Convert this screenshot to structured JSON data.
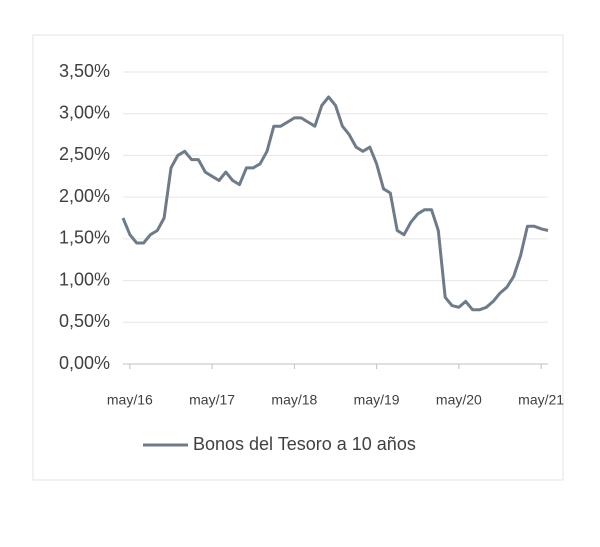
{
  "chart_data": {
    "type": "line",
    "x": [
      "2016-04",
      "2016-05",
      "2016-06",
      "2016-07",
      "2016-08",
      "2016-09",
      "2016-10",
      "2016-11",
      "2016-12",
      "2017-01",
      "2017-02",
      "2017-03",
      "2017-04",
      "2017-05",
      "2017-06",
      "2017-07",
      "2017-08",
      "2017-09",
      "2017-10",
      "2017-11",
      "2017-12",
      "2018-01",
      "2018-02",
      "2018-03",
      "2018-04",
      "2018-05",
      "2018-06",
      "2018-07",
      "2018-08",
      "2018-09",
      "2018-10",
      "2018-11",
      "2018-12",
      "2019-01",
      "2019-02",
      "2019-03",
      "2019-04",
      "2019-05",
      "2019-06",
      "2019-07",
      "2019-08",
      "2019-09",
      "2019-10",
      "2019-11",
      "2019-12",
      "2020-01",
      "2020-02",
      "2020-03",
      "2020-04",
      "2020-05",
      "2020-06",
      "2020-07",
      "2020-08",
      "2020-09",
      "2020-10",
      "2020-11",
      "2020-12",
      "2021-01",
      "2021-02",
      "2021-03",
      "2021-04",
      "2021-05",
      "2021-06"
    ],
    "series": [
      {
        "name": "Bonos del Tesoro a 10 años",
        "color": "#6e7c89",
        "values": [
          1.75,
          1.55,
          1.45,
          1.45,
          1.55,
          1.6,
          1.75,
          2.35,
          2.5,
          2.55,
          2.45,
          2.45,
          2.3,
          2.25,
          2.2,
          2.3,
          2.2,
          2.15,
          2.35,
          2.35,
          2.4,
          2.55,
          2.85,
          2.85,
          2.9,
          2.95,
          2.95,
          2.9,
          2.85,
          3.1,
          3.2,
          3.1,
          2.85,
          2.75,
          2.6,
          2.55,
          2.6,
          2.4,
          2.1,
          2.05,
          1.6,
          1.55,
          1.7,
          1.8,
          1.85,
          1.85,
          1.6,
          0.8,
          0.7,
          0.68,
          0.75,
          0.65,
          0.65,
          0.68,
          0.75,
          0.85,
          0.92,
          1.05,
          1.3,
          1.65,
          1.65,
          1.62,
          1.6
        ]
      }
    ],
    "xlim": [
      "2016-04",
      "2021-06"
    ],
    "xticks": [
      {
        "value": "2016-05",
        "label": "may/16"
      },
      {
        "value": "2017-05",
        "label": "may/17"
      },
      {
        "value": "2018-05",
        "label": "may/18"
      },
      {
        "value": "2019-05",
        "label": "may/19"
      },
      {
        "value": "2020-05",
        "label": "may/20"
      },
      {
        "value": "2021-05",
        "label": "may/21"
      }
    ],
    "ylim": [
      0,
      3.5
    ],
    "yticks": [
      {
        "value": 0,
        "label": "0,00%"
      },
      {
        "value": 0.5,
        "label": "0,50%"
      },
      {
        "value": 1,
        "label": "1,00%"
      },
      {
        "value": 1.5,
        "label": "1,50%"
      },
      {
        "value": 2,
        "label": "2,00%"
      },
      {
        "value": 2.5,
        "label": "2,50%"
      },
      {
        "value": 3,
        "label": "3,00%"
      },
      {
        "value": 3.5,
        "label": "3,50%"
      }
    ],
    "grid": true
  }
}
